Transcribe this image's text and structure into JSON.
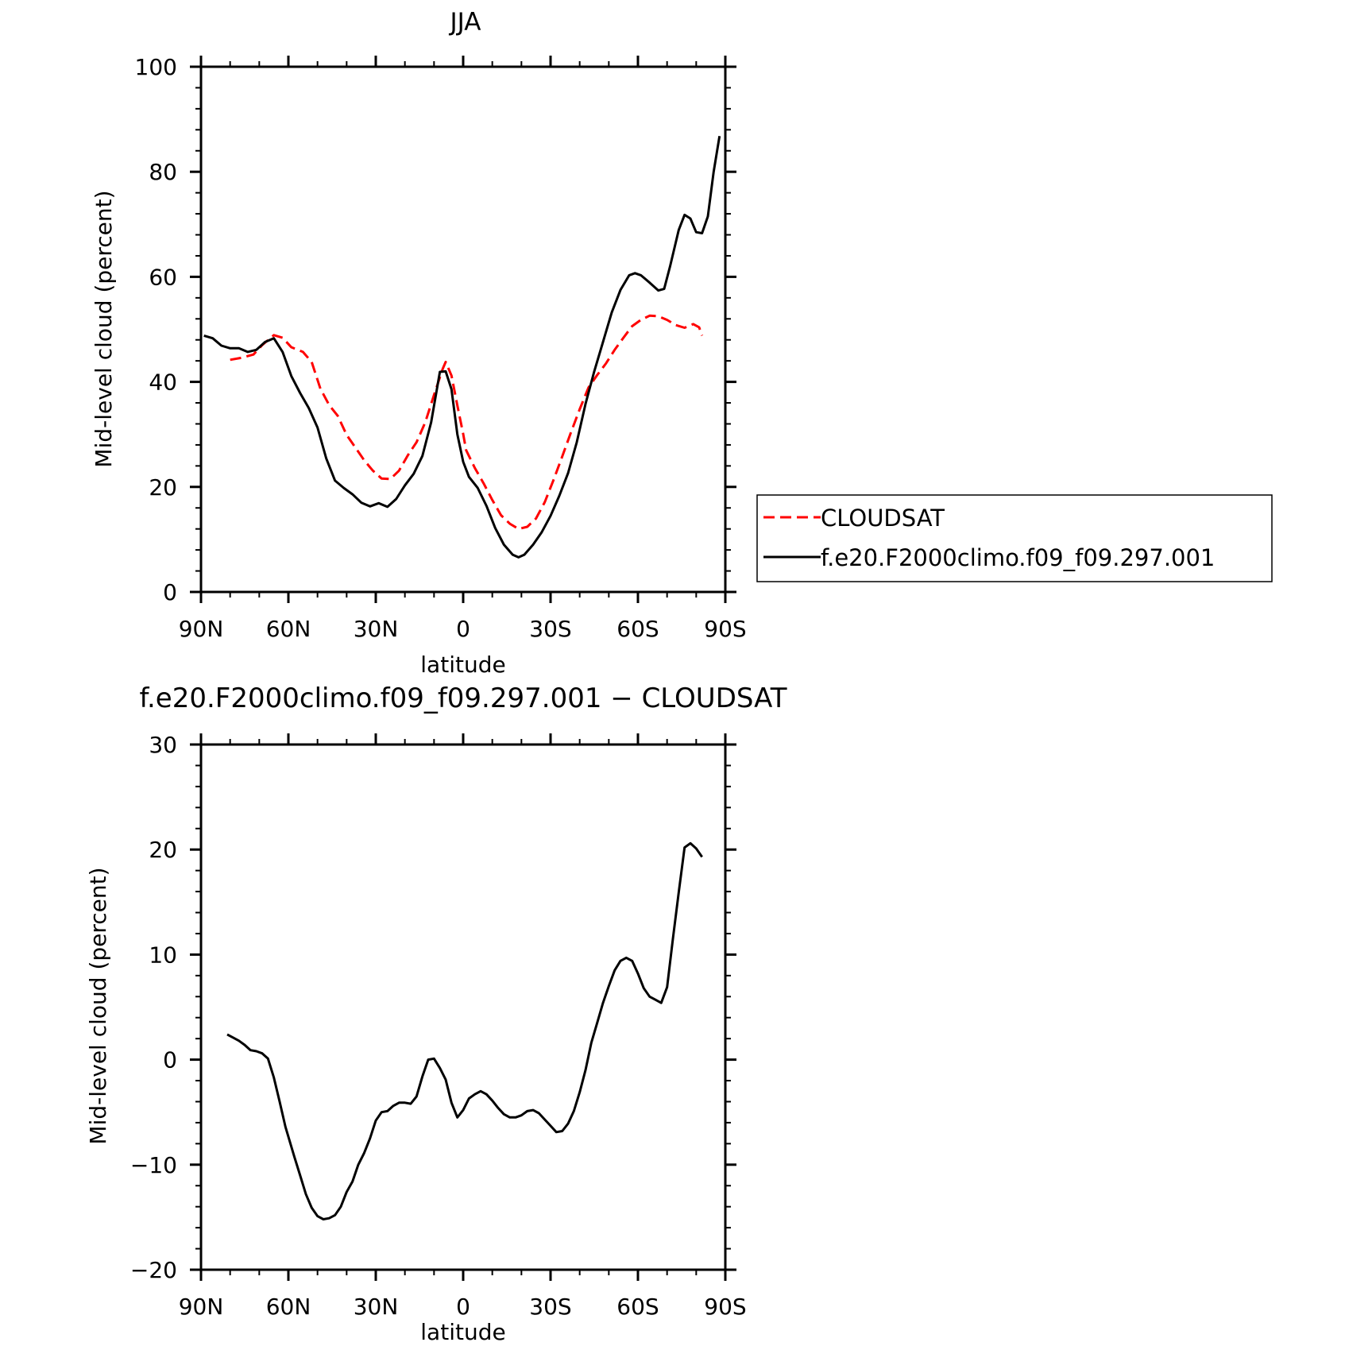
{
  "chart_data": [
    {
      "type": "line",
      "title": "JJA",
      "xlabel": "latitude",
      "ylabel": "Mid-level cloud (percent)",
      "xlim": [
        -90,
        90
      ],
      "ylim": [
        0,
        100
      ],
      "x_ticks": [
        -90,
        -60,
        -30,
        0,
        30,
        60,
        90
      ],
      "x_tick_labels": [
        "90N",
        "60N",
        "30N",
        "0",
        "30S",
        "60S",
        "90S"
      ],
      "y_ticks": [
        0,
        20,
        40,
        60,
        80,
        100
      ],
      "y_tick_labels": [
        "0",
        "20",
        "40",
        "60",
        "80",
        "100"
      ],
      "legend_position": "right",
      "series": [
        {
          "name": "CLOUDSAT",
          "color": "#ff0000",
          "dash": "dashed",
          "points": [
            [
              -80,
              44.2
            ],
            [
              -76,
              44.6
            ],
            [
              -72,
              45.2
            ],
            [
              -69,
              47
            ],
            [
              -65,
              48.9
            ],
            [
              -62,
              48.4
            ],
            [
              -59,
              46.6
            ],
            [
              -55,
              45.7
            ],
            [
              -52,
              43.8
            ],
            [
              -49,
              38.7
            ],
            [
              -46,
              35.6
            ],
            [
              -43,
              33.5
            ],
            [
              -40,
              29.9
            ],
            [
              -37,
              27.5
            ],
            [
              -34,
              25.1
            ],
            [
              -31,
              23.1
            ],
            [
              -28,
              21.6
            ],
            [
              -25,
              21.5
            ],
            [
              -22,
              23.1
            ],
            [
              -19,
              26
            ],
            [
              -16,
              28.5
            ],
            [
              -13,
              32.3
            ],
            [
              -10,
              37.5
            ],
            [
              -7,
              42.5
            ],
            [
              -6,
              43.8
            ],
            [
              -4,
              41.2
            ],
            [
              -2,
              35.5
            ],
            [
              0,
              30.1
            ],
            [
              1,
              27
            ],
            [
              4,
              23.6
            ],
            [
              7,
              20.7
            ],
            [
              10,
              17.5
            ],
            [
              13,
              14.6
            ],
            [
              16,
              13
            ],
            [
              19,
              12
            ],
            [
              22,
              12.4
            ],
            [
              25,
              14
            ],
            [
              28,
              17.1
            ],
            [
              31,
              21.3
            ],
            [
              34,
              25.8
            ],
            [
              37,
              30.4
            ],
            [
              40,
              34.8
            ],
            [
              43,
              38.9
            ],
            [
              46,
              41.3
            ],
            [
              49,
              43.5
            ],
            [
              52,
              46.1
            ],
            [
              55,
              48.4
            ],
            [
              58,
              50.6
            ],
            [
              61,
              51.8
            ],
            [
              64,
              52.6
            ],
            [
              67,
              52.5
            ],
            [
              70,
              51.8
            ],
            [
              73,
              50.8
            ],
            [
              76,
              50.3
            ],
            [
              79,
              51
            ],
            [
              81,
              50.4
            ],
            [
              82,
              48.8
            ]
          ]
        },
        {
          "name": "f.e20.F2000climo.f09_f09.297.001",
          "color": "#000000",
          "dash": "solid",
          "points": [
            [
              -89,
              48.8
            ],
            [
              -86,
              48.3
            ],
            [
              -83,
              46.9
            ],
            [
              -80,
              46.4
            ],
            [
              -77,
              46.4
            ],
            [
              -74,
              45.7
            ],
            [
              -71,
              46.1
            ],
            [
              -68,
              47.6
            ],
            [
              -65,
              48.3
            ],
            [
              -62,
              45.7
            ],
            [
              -59,
              41.1
            ],
            [
              -56,
              37.9
            ],
            [
              -53,
              35
            ],
            [
              -50,
              31.3
            ],
            [
              -47,
              25.4
            ],
            [
              -44,
              21.2
            ],
            [
              -41,
              19.8
            ],
            [
              -38,
              18.6
            ],
            [
              -35,
              17
            ],
            [
              -32,
              16.3
            ],
            [
              -29,
              16.9
            ],
            [
              -26,
              16.2
            ],
            [
              -23,
              17.7
            ],
            [
              -20,
              20.3
            ],
            [
              -17,
              22.5
            ],
            [
              -14,
              25.9
            ],
            [
              -11,
              32.3
            ],
            [
              -8,
              41.9
            ],
            [
              -6,
              42
            ],
            [
              -4,
              38.6
            ],
            [
              -2,
              30
            ],
            [
              0,
              24.8
            ],
            [
              2,
              21.9
            ],
            [
              5,
              19.8
            ],
            [
              8,
              16.4
            ],
            [
              11,
              12.2
            ],
            [
              14,
              9
            ],
            [
              17,
              7.1
            ],
            [
              19,
              6.6
            ],
            [
              21,
              7.1
            ],
            [
              24,
              9
            ],
            [
              27,
              11.4
            ],
            [
              30,
              14.5
            ],
            [
              33,
              18.3
            ],
            [
              36,
              22.6
            ],
            [
              39,
              28.5
            ],
            [
              42,
              35.8
            ],
            [
              45,
              42
            ],
            [
              48,
              47.6
            ],
            [
              51,
              53.2
            ],
            [
              54,
              57.5
            ],
            [
              57,
              60.3
            ],
            [
              59,
              60.7
            ],
            [
              61,
              60.3
            ],
            [
              64,
              58.9
            ],
            [
              67,
              57.4
            ],
            [
              69,
              57.7
            ],
            [
              71,
              61.9
            ],
            [
              74,
              68.9
            ],
            [
              76,
              71.8
            ],
            [
              78,
              71.1
            ],
            [
              80,
              68.5
            ],
            [
              82,
              68.3
            ],
            [
              84,
              71.5
            ],
            [
              86,
              80
            ],
            [
              88,
              86.8
            ]
          ]
        }
      ]
    },
    {
      "type": "line",
      "title": "f.e20.F2000climo.f09_f09.297.001 − CLOUDSAT",
      "xlabel": "latitude",
      "ylabel": "Mid-level cloud (percent)",
      "xlim": [
        -90,
        90
      ],
      "ylim": [
        -20,
        30
      ],
      "x_ticks": [
        -90,
        -60,
        -30,
        0,
        30,
        60,
        90
      ],
      "x_tick_labels": [
        "90N",
        "60N",
        "30N",
        "0",
        "30S",
        "60S",
        "90S"
      ],
      "y_ticks": [
        -20,
        -10,
        0,
        10,
        20,
        30
      ],
      "y_tick_labels": [
        "−20",
        "−10",
        "0",
        "10",
        "20",
        "30"
      ],
      "series": [
        {
          "color": "#000000",
          "dash": "solid",
          "points": [
            [
              -81,
              2.4
            ],
            [
              -79,
              2.1
            ],
            [
              -77,
              1.8
            ],
            [
              -75,
              1.4
            ],
            [
              -73,
              0.9
            ],
            [
              -71,
              0.8
            ],
            [
              -69,
              0.6
            ],
            [
              -67,
              0.1
            ],
            [
              -65,
              -1.7
            ],
            [
              -63,
              -4
            ],
            [
              -61,
              -6.4
            ],
            [
              -58,
              -9.2
            ],
            [
              -56,
              -11
            ],
            [
              -54,
              -12.8
            ],
            [
              -52,
              -14.1
            ],
            [
              -50,
              -14.9
            ],
            [
              -48,
              -15.2
            ],
            [
              -46,
              -15.1
            ],
            [
              -44,
              -14.8
            ],
            [
              -42,
              -14
            ],
            [
              -40,
              -12.6
            ],
            [
              -38,
              -11.6
            ],
            [
              -36,
              -10
            ],
            [
              -34,
              -8.9
            ],
            [
              -32,
              -7.5
            ],
            [
              -30,
              -5.8
            ],
            [
              -28,
              -5
            ],
            [
              -26,
              -4.9
            ],
            [
              -24,
              -4.4
            ],
            [
              -22,
              -4.1
            ],
            [
              -20,
              -4.1
            ],
            [
              -18,
              -4.2
            ],
            [
              -16,
              -3.5
            ],
            [
              -14,
              -1.6
            ],
            [
              -12,
              0
            ],
            [
              -10,
              0.1
            ],
            [
              -8,
              -0.8
            ],
            [
              -6,
              -1.9
            ],
            [
              -4,
              -4.1
            ],
            [
              -2,
              -5.5
            ],
            [
              0,
              -4.8
            ],
            [
              2,
              -3.7
            ],
            [
              4,
              -3.3
            ],
            [
              6,
              -3
            ],
            [
              8,
              -3.3
            ],
            [
              10,
              -3.9
            ],
            [
              12,
              -4.6
            ],
            [
              14,
              -5.2
            ],
            [
              16,
              -5.5
            ],
            [
              18,
              -5.5
            ],
            [
              20,
              -5.3
            ],
            [
              22,
              -4.9
            ],
            [
              24,
              -4.8
            ],
            [
              26,
              -5.1
            ],
            [
              28,
              -5.7
            ],
            [
              30,
              -6.3
            ],
            [
              32,
              -6.9
            ],
            [
              34,
              -6.8
            ],
            [
              36,
              -6.1
            ],
            [
              38,
              -4.9
            ],
            [
              40,
              -3.1
            ],
            [
              42,
              -1
            ],
            [
              44,
              1.6
            ],
            [
              46,
              3.5
            ],
            [
              48,
              5.4
            ],
            [
              50,
              7
            ],
            [
              52,
              8.5
            ],
            [
              54,
              9.4
            ],
            [
              56,
              9.7
            ],
            [
              58,
              9.4
            ],
            [
              60,
              8.2
            ],
            [
              62,
              6.8
            ],
            [
              64,
              6
            ],
            [
              66,
              5.7
            ],
            [
              68,
              5.4
            ],
            [
              70,
              6.9
            ],
            [
              72,
              11.5
            ],
            [
              74,
              15.9
            ],
            [
              76,
              20.2
            ],
            [
              78,
              20.6
            ],
            [
              80,
              20.1
            ],
            [
              82,
              19.3
            ]
          ]
        }
      ]
    }
  ]
}
